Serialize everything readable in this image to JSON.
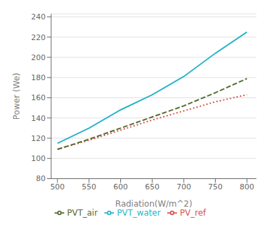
{
  "chart_data": {
    "type": "line",
    "x": [
      500,
      550,
      600,
      650,
      700,
      750,
      800
    ],
    "series": [
      {
        "name": "PV_ref",
        "color": "#d9534f",
        "line_style": "dotted",
        "values": [
          109,
          118,
          128,
          138,
          147,
          156,
          163
        ]
      },
      {
        "name": "PVT_air",
        "color": "#556b2f",
        "line_style": "dashed",
        "values": [
          109,
          119,
          130,
          141,
          152,
          165,
          179
        ]
      },
      {
        "name": "PVT_water",
        "color": "#2ab5c8",
        "line_style": "solid",
        "values": [
          115,
          130,
          148,
          163,
          181,
          204,
          225
        ]
      }
    ],
    "x_label": "Radiation(W/m^2)",
    "y_label": "Power (We)",
    "xlim": [
      490,
      815
    ],
    "ylim": [
      80,
      243
    ],
    "xticks": [
      500,
      550,
      600,
      650,
      700,
      750,
      800
    ],
    "yticks": [
      80,
      100,
      120,
      140,
      160,
      180,
      200,
      220,
      240
    ],
    "grid": "y",
    "legend": "bottom"
  }
}
